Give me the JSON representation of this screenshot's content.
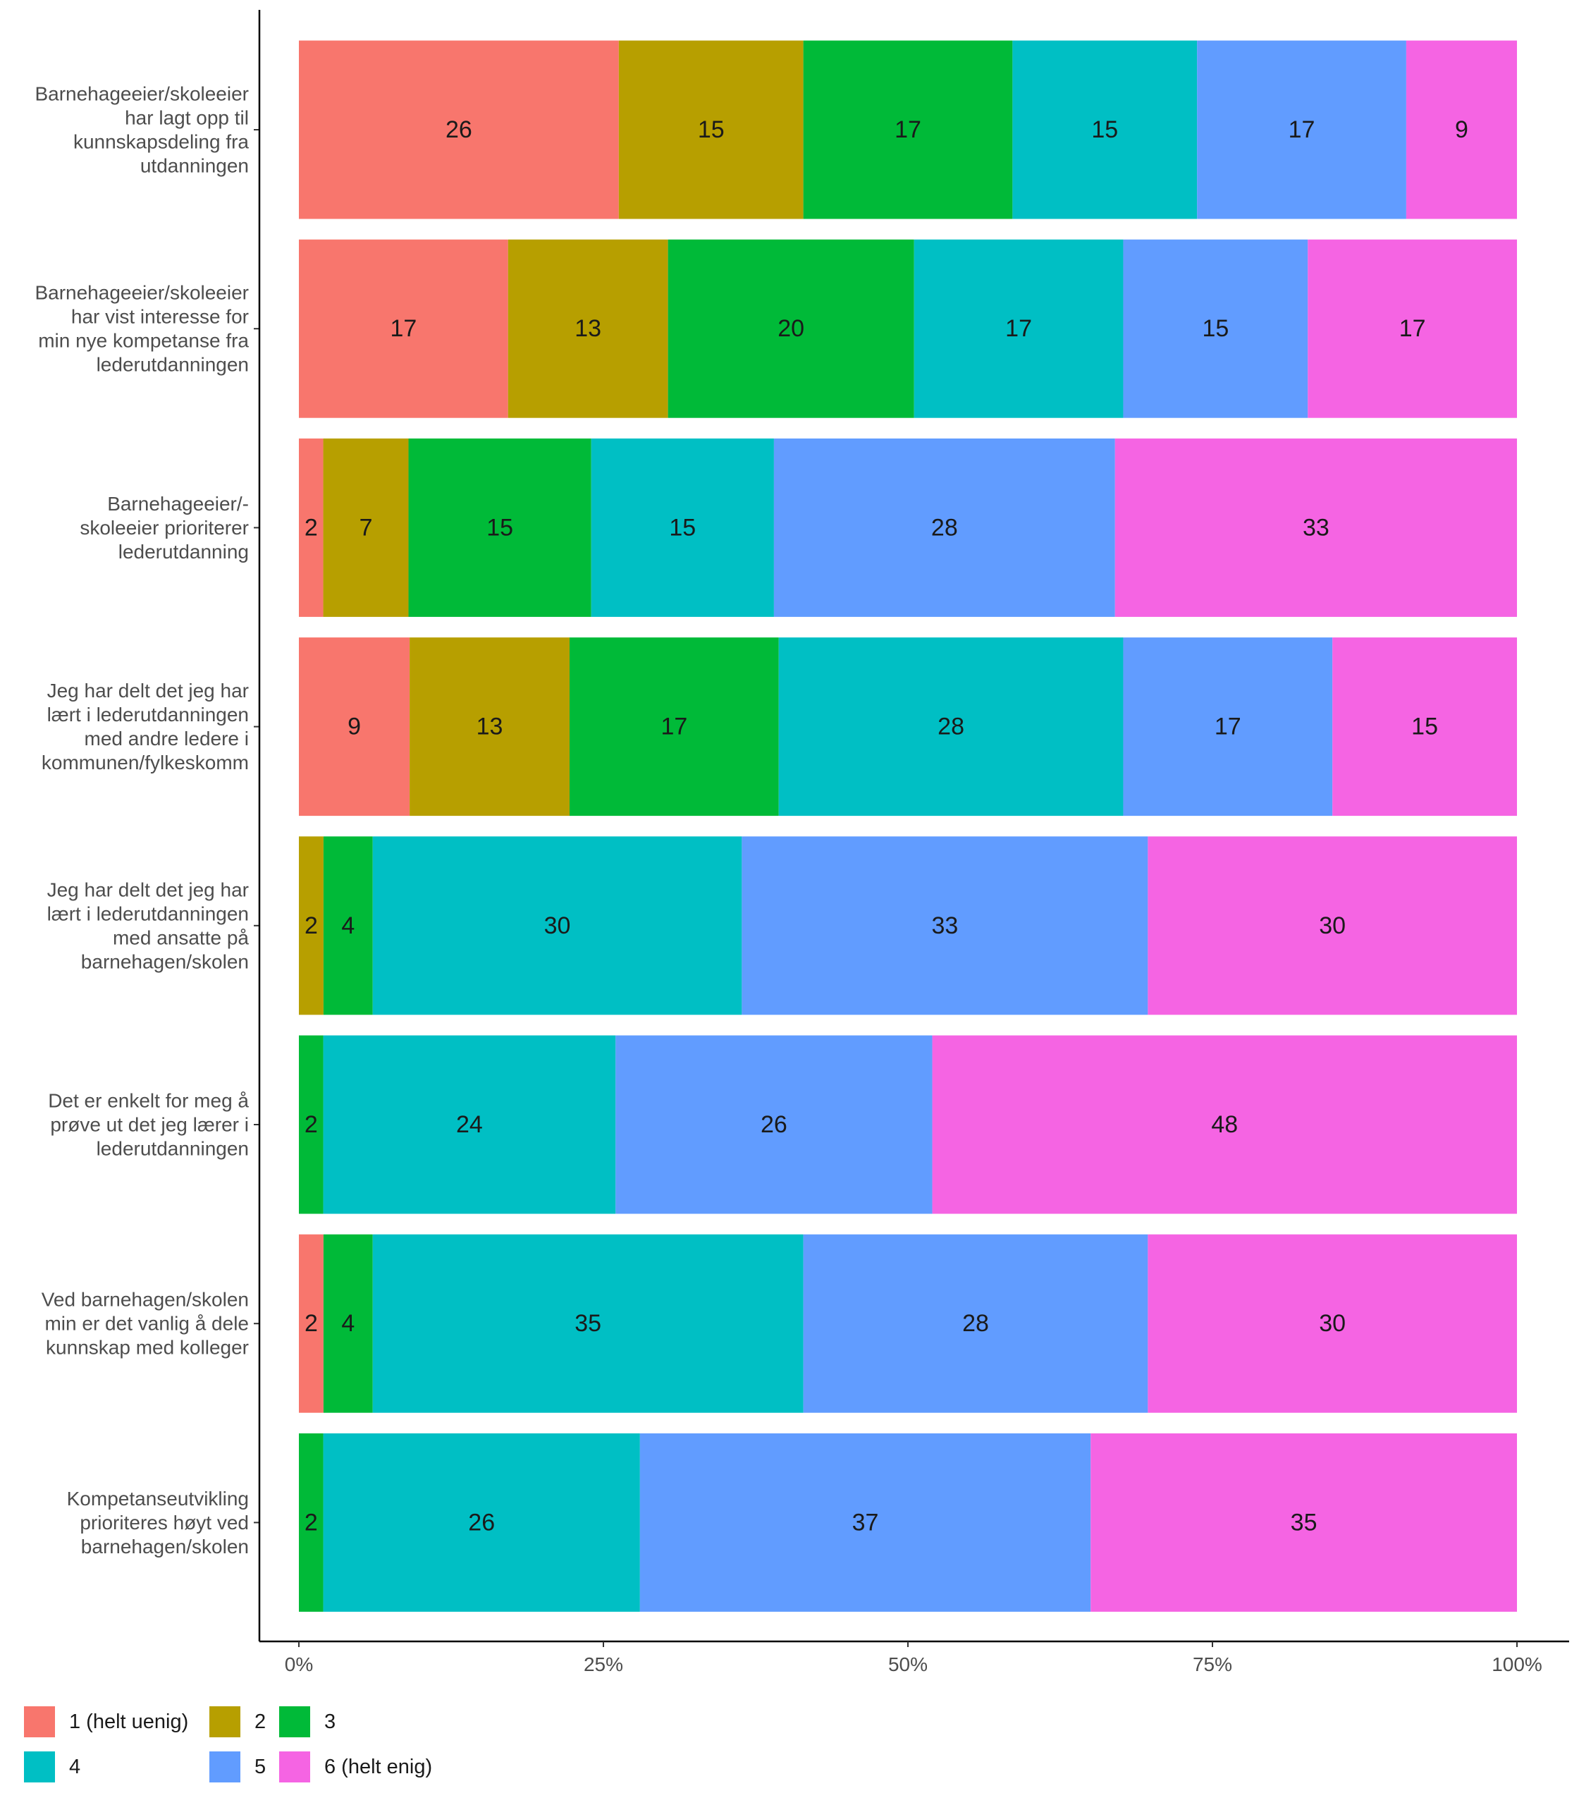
{
  "chart_data": {
    "type": "bar",
    "orientation": "horizontal",
    "stacked": "percent",
    "categories": [
      [
        "Barnehageeier/skoleeier",
        "har lagt opp til",
        "kunnskapsdeling fra",
        "utdanningen"
      ],
      [
        "Barnehageeier/skoleeier",
        "har vist interesse for",
        "min nye kompetanse fra",
        "lederutdanningen"
      ],
      [
        "Barnehageeier/-",
        "skoleeier prioriterer",
        "lederutdanning"
      ],
      [
        "Jeg har delt det jeg har",
        "lært i lederutdanningen",
        "med andre ledere i",
        "kommunen/fylkeskomm"
      ],
      [
        "Jeg har delt det jeg har",
        "lært i lederutdanningen",
        "med ansatte på",
        "barnehagen/skolen"
      ],
      [
        "Det er enkelt for meg å",
        "prøve ut det jeg lærer i",
        "lederutdanningen"
      ],
      [
        "Ved barnehagen/skolen",
        "min er det vanlig å dele",
        "kunnskap med kolleger"
      ],
      [
        "Kompetanseutvikling",
        "prioriteres høyt ved",
        "barnehagen/skolen"
      ]
    ],
    "series": [
      {
        "name": "1 (helt uenig)",
        "color": "#F8766D",
        "values": [
          26,
          17,
          2,
          9,
          0,
          0,
          2,
          0
        ]
      },
      {
        "name": "2",
        "color": "#B79F00",
        "values": [
          15,
          13,
          7,
          13,
          2,
          0,
          0,
          0
        ]
      },
      {
        "name": "3",
        "color": "#00BA38",
        "values": [
          17,
          20,
          15,
          17,
          4,
          2,
          4,
          2
        ]
      },
      {
        "name": "4",
        "color": "#00BFC4",
        "values": [
          15,
          17,
          15,
          28,
          30,
          24,
          35,
          26
        ]
      },
      {
        "name": "5",
        "color": "#619CFF",
        "values": [
          17,
          15,
          28,
          17,
          33,
          26,
          28,
          37
        ]
      },
      {
        "name": "6 (helt enig)",
        "color": "#F564E3",
        "values": [
          9,
          17,
          33,
          15,
          30,
          48,
          30,
          35
        ]
      }
    ],
    "xlim": [
      0,
      100
    ],
    "x_ticks": [
      0,
      25,
      50,
      75,
      100
    ],
    "x_tick_labels": [
      "0%",
      "25%",
      "50%",
      "75%",
      "100%"
    ],
    "legend_position": "bottom-left",
    "grid": false
  }
}
